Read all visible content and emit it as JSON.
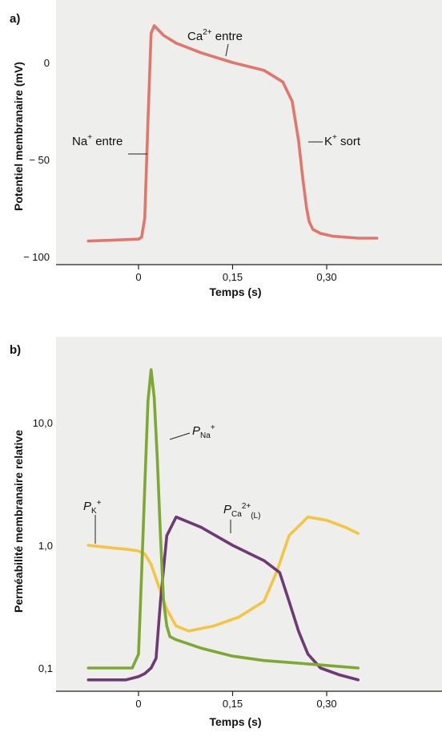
{
  "chart_data": [
    {
      "panel": "a)",
      "type": "line",
      "xlabel": "Temps (s)",
      "ylabel": "Potentiel membranaire (mV)",
      "xlim": [
        -0.1,
        0.5
      ],
      "ylim": [
        -100,
        20
      ],
      "xticks": [
        {
          "value": 0,
          "label": "0"
        },
        {
          "value": 0.15,
          "label": "0,15"
        },
        {
          "value": 0.3,
          "label": "0,30"
        }
      ],
      "yticks": [
        {
          "value": 0,
          "label": "0"
        },
        {
          "value": -50,
          "label": "− 50"
        },
        {
          "value": -100,
          "label": "− 100"
        }
      ],
      "series": [
        {
          "color": "#e2766b",
          "x": [
            -0.08,
            -0.04,
            0.0,
            0.005,
            0.01,
            0.015,
            0.02,
            0.025,
            0.04,
            0.06,
            0.1,
            0.15,
            0.2,
            0.23,
            0.245,
            0.255,
            0.262,
            0.268,
            0.272,
            0.278,
            0.29,
            0.31,
            0.35,
            0.38
          ],
          "y": [
            -92,
            -91.5,
            -91,
            -90,
            -80,
            -30,
            15,
            19,
            14,
            10,
            5,
            0,
            -4,
            -10,
            -20,
            -40,
            -60,
            -75,
            -82,
            -86,
            -88,
            -89.5,
            -90.5,
            -90.5
          ]
        }
      ],
      "annotations": [
        {
          "base": "Ca",
          "sup": "2+",
          "rest": " entre"
        },
        {
          "base": "Na",
          "sup": "+",
          "rest": " entre"
        },
        {
          "base": "K",
          "sup": "+",
          "rest": " sort"
        }
      ]
    },
    {
      "panel": "b)",
      "type": "line",
      "xlabel": "Temps (s)",
      "ylabel": "Perméabilité membranaire relative",
      "yscale": "log",
      "xlim": [
        -0.1,
        0.5
      ],
      "ylim": [
        0.08,
        30
      ],
      "xticks": [
        {
          "value": 0,
          "label": "0"
        },
        {
          "value": 0.15,
          "label": "0,15"
        },
        {
          "value": 0.3,
          "label": "0,30"
        }
      ],
      "yticks": [
        {
          "value": 10,
          "label": "10,0"
        },
        {
          "value": 1,
          "label": "1,0"
        },
        {
          "value": 0.1,
          "label": "0,1"
        }
      ],
      "series": [
        {
          "label_base": "P",
          "label_sub": "Na",
          "label_sup": "+",
          "color": "#7da832",
          "x": [
            -0.08,
            -0.04,
            -0.01,
            0.0,
            0.005,
            0.01,
            0.015,
            0.02,
            0.025,
            0.03,
            0.035,
            0.04,
            0.045,
            0.05,
            0.06,
            0.1,
            0.15,
            0.2,
            0.25,
            0.3,
            0.35
          ],
          "y": [
            0.1,
            0.1,
            0.1,
            0.13,
            0.6,
            3,
            15,
            27,
            16,
            5,
            1.2,
            0.35,
            0.22,
            0.18,
            0.17,
            0.145,
            0.125,
            0.115,
            0.11,
            0.105,
            0.1
          ]
        },
        {
          "label_base": "P",
          "label_sub": "K",
          "label_sup": "+",
          "color": "#f4c542",
          "x": [
            -0.08,
            -0.04,
            -0.02,
            0.0,
            0.01,
            0.02,
            0.03,
            0.045,
            0.06,
            0.08,
            0.12,
            0.16,
            0.2,
            0.22,
            0.24,
            0.27,
            0.3,
            0.33,
            0.35
          ],
          "y": [
            1.0,
            0.95,
            0.93,
            0.9,
            0.85,
            0.7,
            0.5,
            0.3,
            0.22,
            0.2,
            0.22,
            0.26,
            0.35,
            0.6,
            1.2,
            1.7,
            1.6,
            1.4,
            1.25
          ]
        },
        {
          "label_base": "P",
          "label_sub": "Ca",
          "label_sup": "2+",
          "label_sub2": "(L)",
          "color": "#6e3a73",
          "x": [
            -0.08,
            -0.04,
            -0.02,
            0.0,
            0.01,
            0.02,
            0.028,
            0.035,
            0.045,
            0.06,
            0.1,
            0.15,
            0.2,
            0.225,
            0.24,
            0.255,
            0.27,
            0.29,
            0.32,
            0.35
          ],
          "y": [
            0.08,
            0.08,
            0.08,
            0.085,
            0.09,
            0.1,
            0.12,
            0.35,
            1.2,
            1.7,
            1.4,
            1.0,
            0.75,
            0.6,
            0.35,
            0.2,
            0.13,
            0.1,
            0.088,
            0.08
          ]
        }
      ]
    }
  ]
}
